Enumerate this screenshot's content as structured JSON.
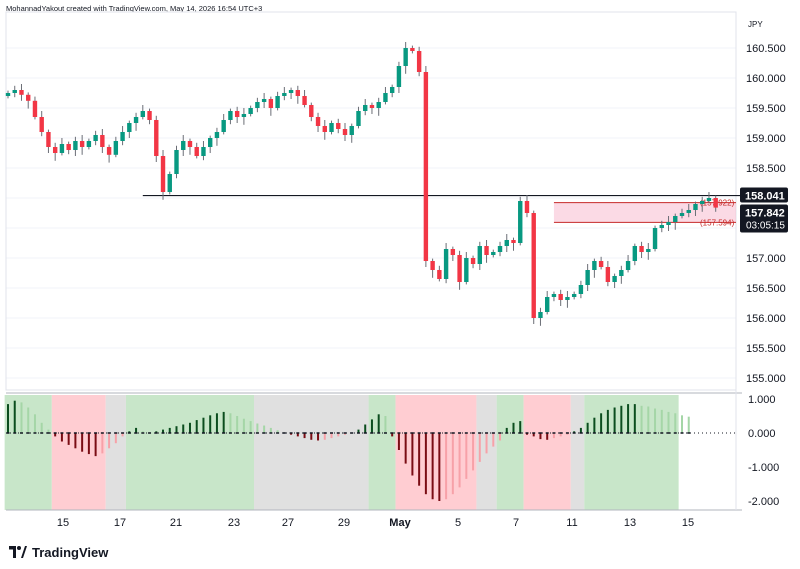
{
  "header": {
    "attribution": "MohannadYakout created with TradingView.com, May 14, 2026 16:54 UTC+3"
  },
  "footer": {
    "brand": "TradingView"
  },
  "colors": {
    "up": "#089981",
    "down": "#f23645",
    "hist_up_strong": "#0b4d1e",
    "hist_up_weak": "#a5d6a7",
    "hist_down_strong": "#7a0c14",
    "hist_down_weak": "#f7a1a8",
    "bg_green": "#c8e6c9",
    "bg_red": "#ffcdd2",
    "bg_gray": "#e0e0e0",
    "price_tag": "#131722",
    "zone": "#f8bbd0"
  },
  "chart_data": [
    {
      "type": "candlestick",
      "currency_label": "JPY",
      "ylim": [
        154.8,
        161.0
      ],
      "y_ticks": [
        "160.500",
        "160.000",
        "159.500",
        "159.000",
        "158.500",
        "158.000",
        "157.500",
        "157.000",
        "156.500",
        "156.000",
        "155.500",
        "155.000"
      ],
      "x_ticks": [
        "15",
        "17",
        "21",
        "23",
        "27",
        "29",
        "May",
        "5",
        "7",
        "11",
        "13",
        "15"
      ],
      "price_tags": [
        {
          "label": "158.041",
          "value": 158.041
        },
        {
          "label": "157.842",
          "value": 157.842,
          "countdown": "03:05:15"
        }
      ],
      "horizontal_line": {
        "value": 158.041
      },
      "zone": {
        "top": 157.922,
        "bottom": 157.594,
        "top_label": "(157.922)",
        "bottom_label": "(157.594)"
      },
      "closes": [
        159.75,
        159.8,
        159.72,
        159.62,
        159.35,
        159.1,
        158.85,
        158.75,
        158.9,
        158.8,
        158.95,
        158.85,
        158.95,
        159.05,
        158.85,
        158.72,
        158.95,
        159.1,
        159.25,
        159.35,
        159.45,
        159.3,
        158.7,
        158.1,
        158.4,
        158.8,
        158.95,
        158.85,
        158.7,
        158.85,
        159.0,
        159.1,
        159.3,
        159.45,
        159.35,
        159.4,
        159.5,
        159.6,
        159.65,
        159.5,
        159.7,
        159.75,
        159.8,
        159.7,
        159.55,
        159.35,
        159.2,
        159.1,
        159.25,
        159.15,
        159.05,
        159.2,
        159.45,
        159.55,
        159.5,
        159.6,
        159.75,
        159.85,
        160.2,
        160.5,
        160.45,
        160.1,
        156.95,
        156.8,
        156.65,
        157.15,
        157.05,
        156.6,
        157.0,
        156.9,
        157.2,
        157.05,
        157.1,
        157.2,
        157.3,
        157.25,
        157.95,
        157.75,
        156.0,
        156.1,
        156.35,
        156.4,
        156.3,
        156.35,
        156.4,
        156.55,
        156.8,
        156.95,
        156.85,
        156.6,
        156.7,
        156.8,
        156.95,
        157.2,
        157.1,
        157.15,
        157.5,
        157.55,
        157.6,
        157.7,
        157.75,
        157.8,
        157.9,
        157.95,
        158.0,
        157.84
      ]
    },
    {
      "type": "bar",
      "ylim": [
        -2.2,
        1.1
      ],
      "y_ticks": [
        "1.000",
        "0.000",
        "-1.000",
        "-2.000"
      ],
      "values": [
        0.85,
        0.95,
        0.9,
        0.75,
        0.55,
        0.3,
        0.1,
        -0.1,
        -0.25,
        -0.35,
        -0.45,
        -0.55,
        -0.62,
        -0.68,
        -0.6,
        -0.45,
        -0.3,
        -0.1,
        0.05,
        0.15,
        0.05,
        0.02,
        0.05,
        0.1,
        0.15,
        0.2,
        0.25,
        0.3,
        0.38,
        0.45,
        0.52,
        0.58,
        0.62,
        0.58,
        0.5,
        0.42,
        0.35,
        0.28,
        0.22,
        0.15,
        0.08,
        0.02,
        -0.05,
        -0.1,
        -0.15,
        -0.2,
        -0.22,
        -0.2,
        -0.15,
        -0.1,
        -0.05,
        0.0,
        0.1,
        0.25,
        0.4,
        0.55,
        0.5,
        -0.1,
        -0.5,
        -0.9,
        -1.25,
        -1.55,
        -1.8,
        -1.95,
        -2.0,
        -1.95,
        -1.8,
        -1.6,
        -1.35,
        -1.1,
        -0.85,
        -0.6,
        -0.4,
        -0.22,
        0.15,
        0.3,
        0.35,
        -0.05,
        -0.1,
        -0.18,
        -0.2,
        -0.15,
        -0.1,
        -0.05,
        0.05,
        0.15,
        0.3,
        0.45,
        0.58,
        0.68,
        0.75,
        0.8,
        0.85,
        0.85,
        0.8,
        0.78,
        0.72,
        0.68,
        0.62,
        0.58,
        0.52,
        0.48
      ],
      "background_regions": [
        {
          "from": 0,
          "to": 6,
          "color": "green"
        },
        {
          "from": 7,
          "to": 14,
          "color": "red"
        },
        {
          "from": 15,
          "to": 17,
          "color": "gray"
        },
        {
          "from": 18,
          "to": 36,
          "color": "green"
        },
        {
          "from": 37,
          "to": 53,
          "color": "gray"
        },
        {
          "from": 54,
          "to": 57,
          "color": "green"
        },
        {
          "from": 58,
          "to": 69,
          "color": "red"
        },
        {
          "from": 70,
          "to": 72,
          "color": "gray"
        },
        {
          "from": 73,
          "to": 76,
          "color": "green"
        },
        {
          "from": 77,
          "to": 83,
          "color": "red"
        },
        {
          "from": 84,
          "to": 85,
          "color": "gray"
        },
        {
          "from": 86,
          "to": 99,
          "color": "green"
        }
      ]
    }
  ]
}
